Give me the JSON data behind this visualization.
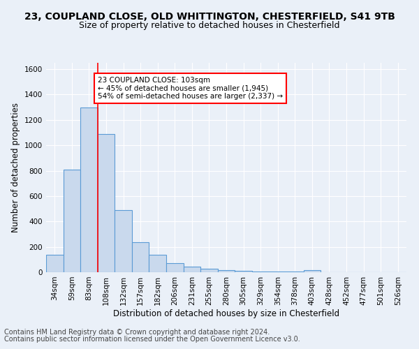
{
  "title1": "23, COUPLAND CLOSE, OLD WHITTINGTON, CHESTERFIELD, S41 9TB",
  "title2": "Size of property relative to detached houses in Chesterfield",
  "xlabel": "Distribution of detached houses by size in Chesterfield",
  "ylabel": "Number of detached properties",
  "footnote1": "Contains HM Land Registry data © Crown copyright and database right 2024.",
  "footnote2": "Contains public sector information licensed under the Open Government Licence v3.0.",
  "bin_labels": [
    "34sqm",
    "59sqm",
    "83sqm",
    "108sqm",
    "132sqm",
    "157sqm",
    "182sqm",
    "206sqm",
    "231sqm",
    "255sqm",
    "280sqm",
    "305sqm",
    "329sqm",
    "354sqm",
    "378sqm",
    "403sqm",
    "428sqm",
    "452sqm",
    "477sqm",
    "501sqm",
    "526sqm"
  ],
  "bar_heights": [
    140,
    810,
    1300,
    1090,
    490,
    235,
    135,
    72,
    42,
    25,
    15,
    10,
    8,
    6,
    5,
    17,
    0,
    0,
    0,
    0,
    0
  ],
  "bar_color": "#c9d9ed",
  "bar_edge_color": "#5b9bd5",
  "red_line_x": 3.0,
  "annotation_text": "23 COUPLAND CLOSE: 103sqm\n← 45% of detached houses are smaller (1,945)\n54% of semi-detached houses are larger (2,337) →",
  "annotation_box_color": "white",
  "annotation_box_edge": "red",
  "ylim": [
    0,
    1650
  ],
  "yticks": [
    0,
    200,
    400,
    600,
    800,
    1000,
    1200,
    1400,
    1600
  ],
  "bg_color": "#eaf0f8",
  "plot_bg_color": "#eaf0f8",
  "grid_color": "white",
  "title1_fontsize": 10,
  "title2_fontsize": 9,
  "footnote_fontsize": 7,
  "xlabel_fontsize": 8.5,
  "ylabel_fontsize": 8.5,
  "tick_fontsize": 7.5,
  "annot_fontsize": 7.5
}
